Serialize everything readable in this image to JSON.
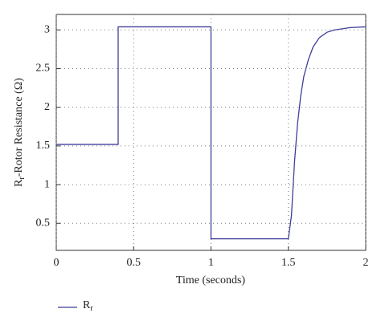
{
  "chart_data": {
    "type": "line",
    "x_label": "Time (seconds)",
    "y_label": "Rr-Rotor Resistance (Ω)",
    "xlim": [
      0,
      2
    ],
    "xticks": [
      0,
      0.5,
      1,
      1.5,
      2
    ],
    "ylim": [
      0.15,
      3.2
    ],
    "yticks": [
      0.5,
      1,
      1.5,
      2,
      2.5,
      3
    ],
    "grid": true,
    "legend": "bottom-left",
    "series": [
      {
        "name": "Rr",
        "color": "#3f3f9a",
        "x": [
          0,
          0.4,
          0.4,
          1.0,
          1.0,
          1.5,
          1.52,
          1.54,
          1.56,
          1.58,
          1.6,
          1.63,
          1.66,
          1.7,
          1.75,
          1.8,
          1.9,
          2.0
        ],
        "values": [
          1.52,
          1.52,
          3.04,
          3.04,
          0.3,
          0.3,
          0.6,
          1.3,
          1.8,
          2.15,
          2.4,
          2.62,
          2.78,
          2.9,
          2.97,
          3.0,
          3.03,
          3.04
        ]
      }
    ]
  }
}
